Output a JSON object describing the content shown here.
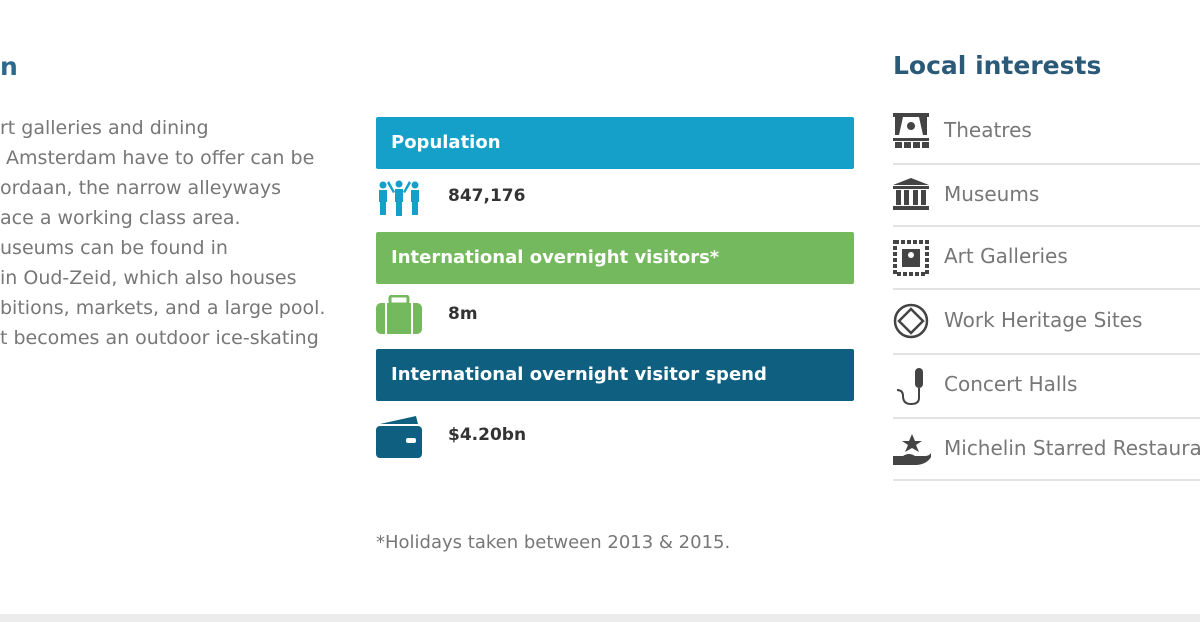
{
  "left": {
    "heading": "n",
    "lines": [
      "rt galleries and dining",
      " Amsterdam have to offer can be",
      "ordaan, the narrow alleyways",
      "ace a working class area.",
      "useums can be found in",
      "in Oud-Zeid, which also houses",
      "bitions, markets, and a large pool.",
      "t becomes an outdoor ice-skating"
    ]
  },
  "stats": [
    {
      "label": "Population",
      "value": "847,176"
    },
    {
      "label": "International overnight visitors*",
      "value": "8m"
    },
    {
      "label": "International overnight visitor spend",
      "value": "$4.20bn"
    }
  ],
  "footnote": "*Holidays taken between 2013 & 2015.",
  "interests": {
    "title": "Local interests",
    "items": [
      "Theatres",
      "Museums",
      "Art Galleries",
      "Work Heritage Sites",
      "Concert Halls",
      "Michelin Starred Restaura"
    ]
  }
}
